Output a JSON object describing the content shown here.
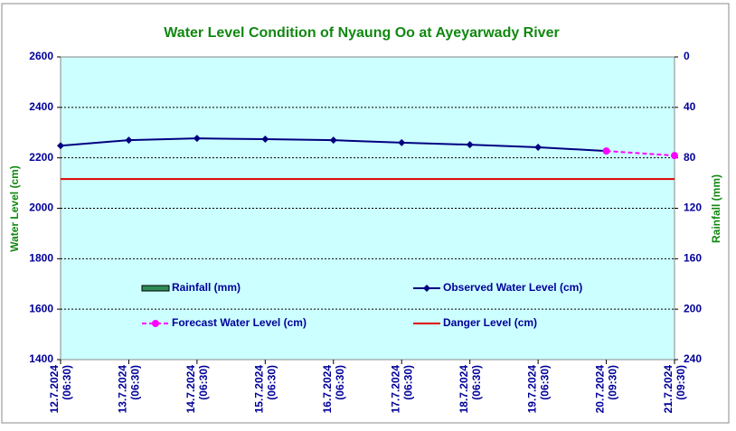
{
  "chart_data": {
    "type": "line",
    "title": "Water Level Condition of Nyaung Oo at Ayeyarwady River",
    "y_label": "Water Level (cm)",
    "y2_label": "Rainfall (mm)",
    "categories": [
      [
        "12.7.2024",
        "(06:30)"
      ],
      [
        "13.7.2024",
        "(06:30)"
      ],
      [
        "14.7.2024",
        "(06:30)"
      ],
      [
        "15.7.2024",
        "(06:30)"
      ],
      [
        "16.7.2024",
        "(06:30)"
      ],
      [
        "17.7.2024",
        "(06:30)"
      ],
      [
        "18.7.2024",
        "(06:30)"
      ],
      [
        "19.7.2024",
        "(06:30)"
      ],
      [
        "20.7.2024",
        "(09:30)"
      ],
      [
        "21.7.2024",
        "(09:30)"
      ]
    ],
    "series": [
      {
        "name": "Rainfall (mm)",
        "color": "#2e8b57",
        "style": "bar",
        "axis": "y2",
        "values": [
          null,
          null,
          null,
          null,
          null,
          null,
          null,
          null,
          null,
          null
        ]
      },
      {
        "name": "Observed Water Level (cm)",
        "color": "#000080",
        "style": "diamond",
        "values": [
          2248,
          2270,
          2277,
          2274,
          2270,
          2260,
          2252,
          2242,
          2227,
          null
        ]
      },
      {
        "name": "Forecast Water Level (cm)",
        "color": "#ff00ff",
        "style": "dashed-circle",
        "values": [
          null,
          null,
          null,
          null,
          null,
          null,
          null,
          null,
          2227,
          2209
        ]
      },
      {
        "name": "Danger Level (cm)",
        "color": "#e00000",
        "style": "plain",
        "values": [
          2116,
          2116,
          2116,
          2116,
          2116,
          2116,
          2116,
          2116,
          2116,
          2116
        ]
      }
    ],
    "ylim": [
      1400,
      2600
    ],
    "yticks": [
      1400,
      1600,
      1800,
      2000,
      2200,
      2400,
      2600
    ],
    "y2lim": [
      240,
      0
    ],
    "y2ticks": [
      0,
      40,
      80,
      120,
      160,
      200,
      240
    ],
    "grid": true
  }
}
